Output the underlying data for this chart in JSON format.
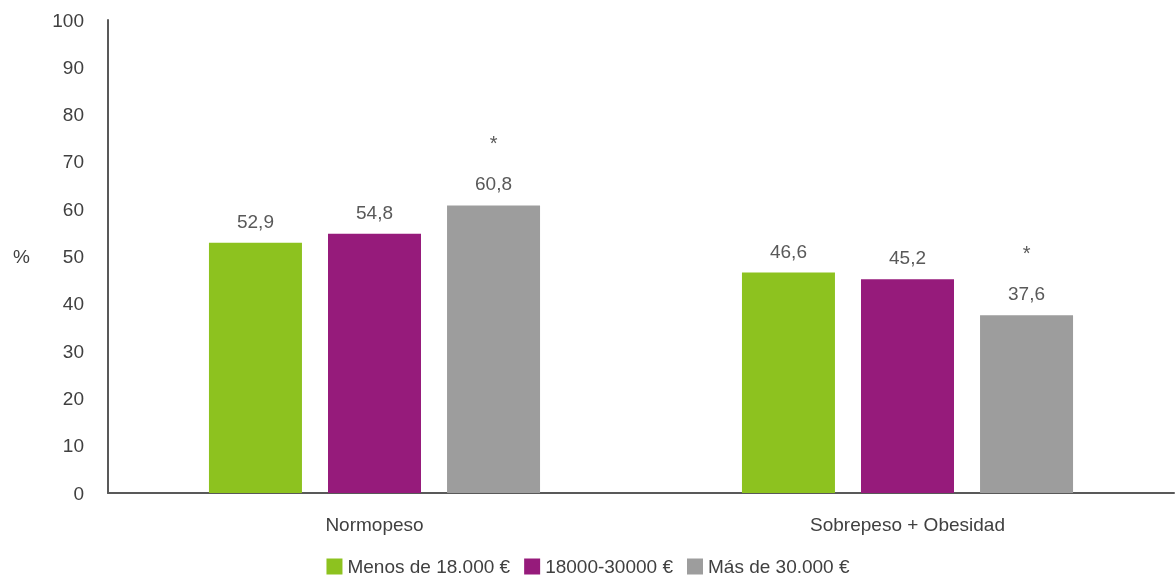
{
  "chart_data": {
    "type": "bar",
    "ylabel": "%",
    "categories": [
      "Normopeso",
      "Sobrepeso + Obesidad"
    ],
    "series": [
      {
        "name": "Menos de 18.000 €",
        "color": "#8dc21f",
        "values": [
          52.9,
          46.6
        ],
        "value_labels": [
          "52,9",
          "46,6"
        ]
      },
      {
        "name": "18000-30000 €",
        "color": "#961b7b",
        "values": [
          54.8,
          45.2
        ],
        "value_labels": [
          "54,8",
          "45,2"
        ]
      },
      {
        "name": "Más de 30.000 €",
        "color": "#9d9d9d",
        "values": [
          60.8,
          37.6
        ],
        "value_labels": [
          "60,8",
          "37,6"
        ]
      }
    ],
    "ylim": [
      0,
      100
    ],
    "yticks": [
      0,
      10,
      20,
      30,
      40,
      50,
      60,
      70,
      80,
      90,
      100
    ],
    "grid": false,
    "legend": "bottom",
    "annotations": [
      "*",
      "*"
    ]
  }
}
